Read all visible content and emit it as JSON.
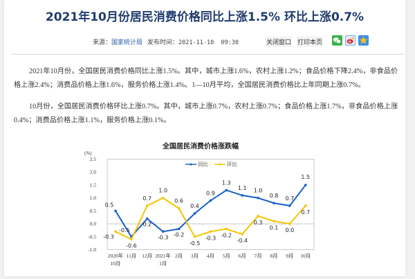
{
  "header": {
    "title": "2021年10月份居民消费价格同比上涨1.5% 环比上涨0.7%",
    "source_label": "来源：",
    "source_value": "国家统计局",
    "date_label": "发布时间：",
    "date_value": "2021-11-10  09:30",
    "close_button": "关闭窗口",
    "print_button": "打印本页",
    "share_icons": [
      "wechat-icon",
      "weibo-icon",
      "favorite-icon"
    ]
  },
  "body": {
    "paragraphs": [
      "2021年10月份，全国居民消费价格同比上涨1.5%。其中，城市上涨1.6%，农村上涨1.2%；食品价格下降2.4%，非食品价格上涨2.4%；消费品价格上涨1.6%，服务价格上涨1.4%。1—10月平均，全国居民消费价格比上年同期上涨0.7%。",
      "10月份，全国居民消费价格环比上涨0.7%。其中，城市上涨0.7%，农村上涨0.7%；食品价格上涨1.7%，非食品价格上涨0.4%；消费品价格上涨1.1%，服务价格上涨0.1%。"
    ]
  },
  "chart_data": {
    "type": "line",
    "title": "全国居民消费价格涨跌幅",
    "ylabel": "(%)",
    "xlabel": "",
    "ylim": [
      -1.0,
      2.5
    ],
    "yticks": [
      "2.5",
      "2.0",
      "1.5",
      "1.0",
      "0.5",
      "0.0",
      "-0.5",
      "-1.0"
    ],
    "categories": [
      "2020年\n10月",
      "11月",
      "12月",
      "2021年\n1月",
      "2月",
      "3月",
      "4月",
      "5月",
      "6月",
      "7月",
      "8月",
      "9月",
      "10月"
    ],
    "series": [
      {
        "name": "同比",
        "color": "#1560c8",
        "values": [
          0.5,
          -0.5,
          0.2,
          -0.3,
          -0.2,
          0.4,
          0.9,
          1.3,
          1.1,
          1.0,
          0.8,
          0.7,
          1.5
        ]
      },
      {
        "name": "环比",
        "color": "#f5c300",
        "values": [
          -0.3,
          -0.6,
          0.7,
          1.0,
          0.6,
          -0.5,
          -0.3,
          -0.2,
          -0.4,
          0.3,
          0.1,
          0.0,
          0.7
        ]
      }
    ],
    "legend_position": "top-center",
    "grid": false
  }
}
